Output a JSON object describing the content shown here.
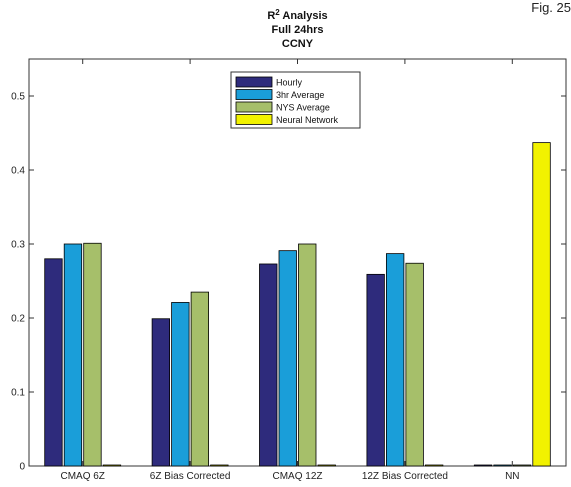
{
  "figure_label": "Fig. 25",
  "chart_data": {
    "type": "bar",
    "title_main": "R",
    "title_sup": "2",
    "title_rest": " Analysis",
    "subtitle_lines": [
      "Full 24hrs",
      "CCNY"
    ],
    "categories": [
      "CMAQ 6Z",
      "6Z Bias Corrected",
      "CMAQ 12Z",
      "12Z Bias Corrected",
      "NN"
    ],
    "series": [
      {
        "name": "Hourly",
        "color": "#2e2b7c",
        "values": [
          0.28,
          0.199,
          0.273,
          0.259,
          0
        ]
      },
      {
        "name": "3hr Average",
        "color": "#1a9ed9",
        "values": [
          0.3,
          0.221,
          0.291,
          0.287,
          0
        ]
      },
      {
        "name": "NYS Average",
        "color": "#a6bf6a",
        "values": [
          0.301,
          0.235,
          0.3,
          0.274,
          0
        ]
      },
      {
        "name": "Neural Network",
        "color": "#f2f200",
        "values": [
          0,
          0,
          0,
          0,
          0.437
        ]
      }
    ],
    "ylim": [
      0,
      0.55
    ],
    "yticks": [
      "0",
      "0.1",
      "0.2",
      "0.3",
      "0.4",
      "0.5"
    ],
    "xlabel": "",
    "ylabel": "",
    "grid": false,
    "legend_position": "top-center"
  }
}
